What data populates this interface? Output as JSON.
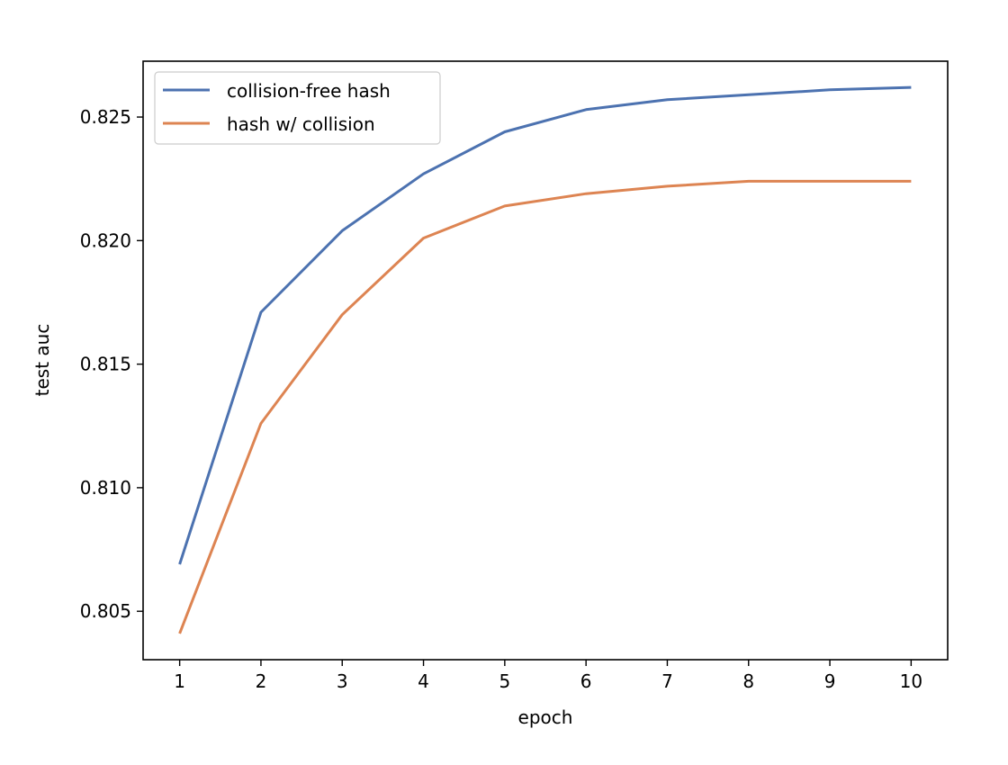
{
  "chart_data": {
    "type": "line",
    "title": "",
    "xlabel": "epoch",
    "ylabel": "test auc",
    "x": [
      1,
      2,
      3,
      4,
      5,
      6,
      7,
      8,
      9,
      10
    ],
    "xticks": [
      "1",
      "2",
      "3",
      "4",
      "5",
      "6",
      "7",
      "8",
      "9",
      "10"
    ],
    "yticks": [
      "0.805",
      "0.810",
      "0.815",
      "0.820",
      "0.825"
    ],
    "ytick_values": [
      0.805,
      0.81,
      0.815,
      0.82,
      0.825
    ],
    "xlim": [
      0.55,
      10.45
    ],
    "ylim": [
      0.80304,
      0.82726
    ],
    "grid": false,
    "legend_position": "upper left",
    "series": [
      {
        "name": "collision-free hash",
        "color": "#4c72b0",
        "values": [
          0.8069,
          0.8171,
          0.8204,
          0.8227,
          0.8244,
          0.8253,
          0.8257,
          0.8259,
          0.8261,
          0.8262
        ]
      },
      {
        "name": "hash w/ collision",
        "color": "#dd8452",
        "values": [
          0.8041,
          0.8126,
          0.817,
          0.8201,
          0.8214,
          0.8219,
          0.8222,
          0.8224,
          0.8224,
          0.8224
        ]
      }
    ]
  }
}
